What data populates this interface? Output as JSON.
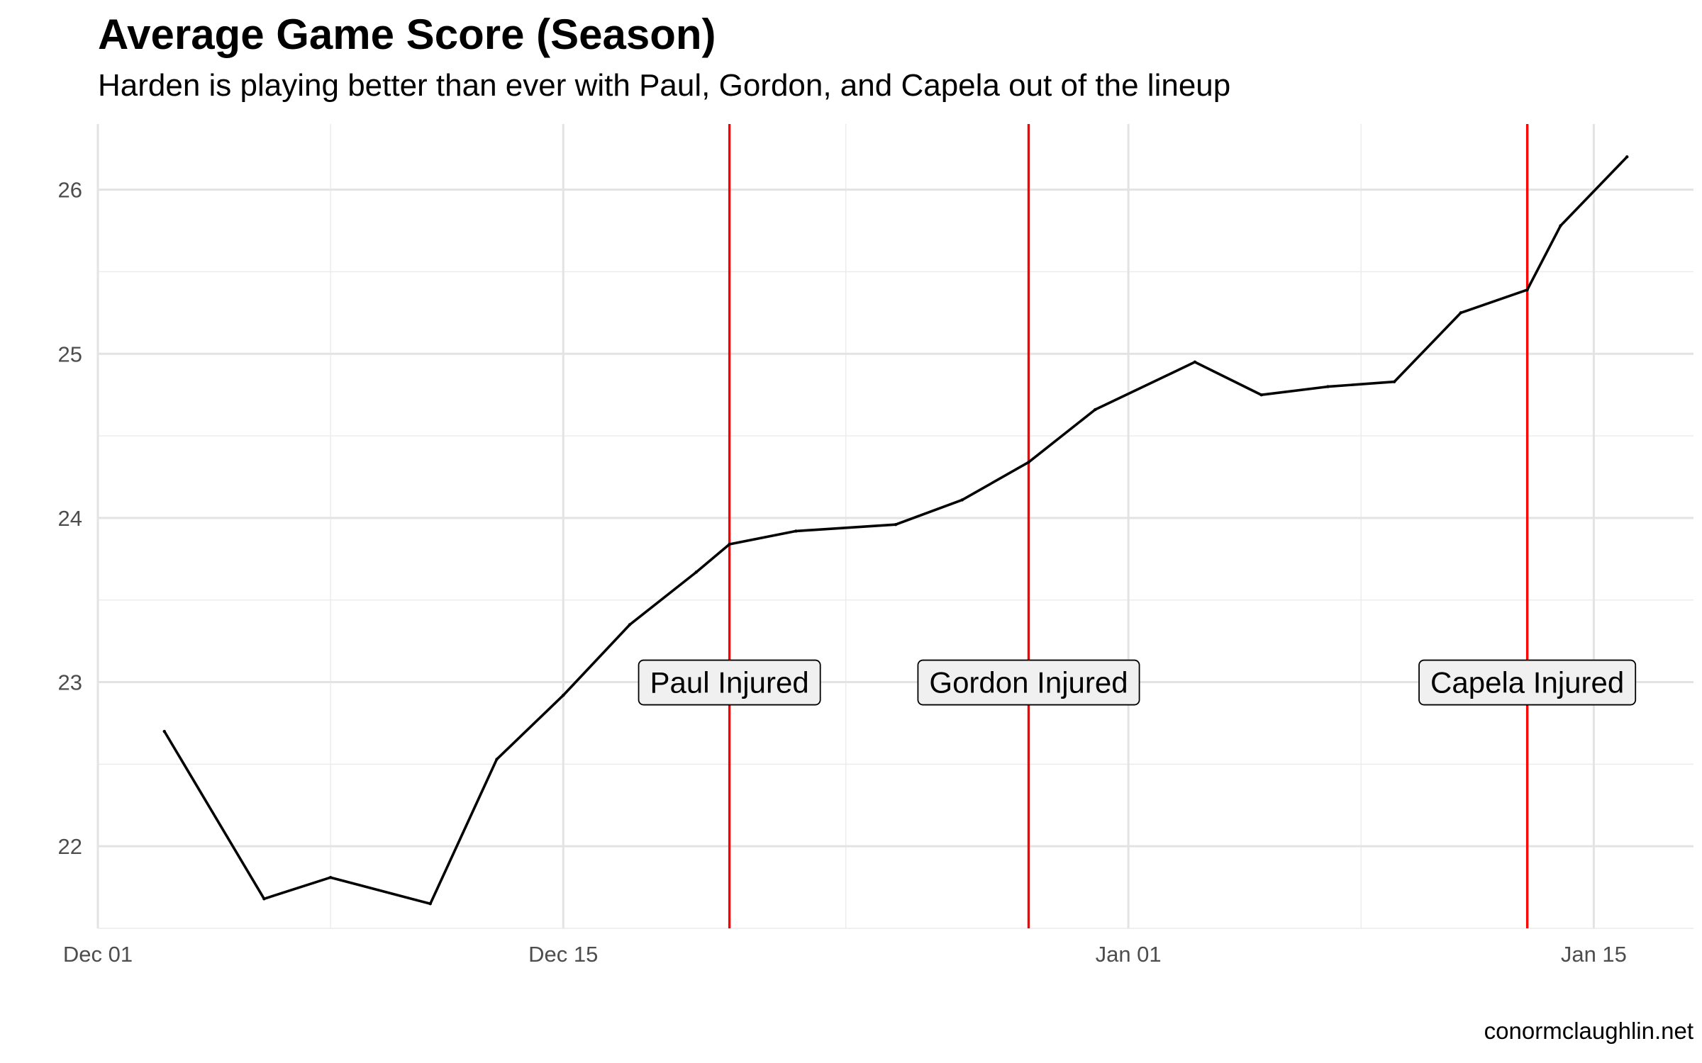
{
  "chart_data": {
    "type": "line",
    "title": "Average Game Score (Season)",
    "subtitle": "Harden is playing better than ever with Paul, Gordon, and Capela out of the lineup",
    "caption": "conormclaughlin.net",
    "xlabel": "",
    "ylabel": "",
    "xlim": [
      "2018-12-01",
      "2019-01-18"
    ],
    "ylim": [
      21.5,
      26.4
    ],
    "x_ticks": [
      {
        "date": "2018-12-01",
        "label": "Dec 01"
      },
      {
        "date": "2018-12-15",
        "label": "Dec 15"
      },
      {
        "date": "2019-01-01",
        "label": "Jan 01"
      },
      {
        "date": "2019-01-15",
        "label": "Jan 15"
      }
    ],
    "y_ticks": [
      22,
      23,
      24,
      25,
      26
    ],
    "grid": true,
    "series": [
      {
        "color": "#000000",
        "points": [
          {
            "x": "2018-12-03",
            "y": 22.7
          },
          {
            "x": "2018-12-06",
            "y": 21.68
          },
          {
            "x": "2018-12-08",
            "y": 21.81
          },
          {
            "x": "2018-12-11",
            "y": 21.65
          },
          {
            "x": "2018-12-13",
            "y": 22.53
          },
          {
            "x": "2018-12-15",
            "y": 22.92
          },
          {
            "x": "2018-12-17",
            "y": 23.35
          },
          {
            "x": "2018-12-19",
            "y": 23.67
          },
          {
            "x": "2018-12-20",
            "y": 23.84
          },
          {
            "x": "2018-12-22",
            "y": 23.92
          },
          {
            "x": "2018-12-25",
            "y": 23.96
          },
          {
            "x": "2018-12-27",
            "y": 24.11
          },
          {
            "x": "2018-12-29",
            "y": 24.34
          },
          {
            "x": "2018-12-31",
            "y": 24.66
          },
          {
            "x": "2019-01-03",
            "y": 24.95
          },
          {
            "x": "2019-01-05",
            "y": 24.75
          },
          {
            "x": "2019-01-07",
            "y": 24.8
          },
          {
            "x": "2019-01-09",
            "y": 24.83
          },
          {
            "x": "2019-01-11",
            "y": 25.25
          },
          {
            "x": "2019-01-13",
            "y": 25.39
          },
          {
            "x": "2019-01-14",
            "y": 25.78
          },
          {
            "x": "2019-01-16",
            "y": 26.2
          }
        ]
      }
    ],
    "events": [
      {
        "date": "2018-12-20",
        "label": "Paul Injured",
        "color": "#ff0000"
      },
      {
        "date": "2018-12-29",
        "label": "Gordon Injured",
        "color": "#ff0000"
      },
      {
        "date": "2019-01-13",
        "label": "Capela Injured",
        "color": "#ff0000"
      }
    ],
    "annotation_y": 23
  }
}
